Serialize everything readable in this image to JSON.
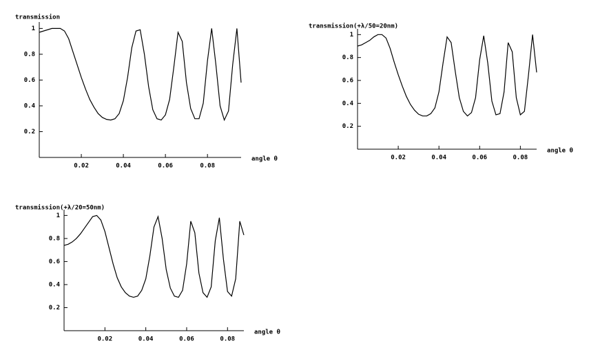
{
  "chart_data": [
    {
      "type": "line",
      "ylabel": "transmission",
      "xlabel": "angle θ",
      "xlim": [
        0,
        0.096
      ],
      "ylim": [
        0,
        1.05
      ],
      "xticks": [
        0.02,
        0.04,
        0.06,
        0.08
      ],
      "yticks": [
        0.2,
        0.4,
        0.6,
        0.8,
        1
      ],
      "color": "#000000",
      "x": [
        0,
        0.002,
        0.004,
        0.006,
        0.008,
        0.01,
        0.012,
        0.014,
        0.016,
        0.018,
        0.02,
        0.022,
        0.024,
        0.026,
        0.028,
        0.03,
        0.032,
        0.034,
        0.036,
        0.038,
        0.04,
        0.042,
        0.044,
        0.046,
        0.048,
        0.05,
        0.052,
        0.054,
        0.056,
        0.058,
        0.06,
        0.062,
        0.064,
        0.066,
        0.068,
        0.07,
        0.072,
        0.074,
        0.076,
        0.078,
        0.08,
        0.082,
        0.084,
        0.086,
        0.088,
        0.09,
        0.092,
        0.094,
        0.096
      ],
      "values": [
        0.97,
        0.98,
        0.99,
        1.0,
        1.0,
        1.0,
        0.98,
        0.92,
        0.82,
        0.72,
        0.62,
        0.53,
        0.45,
        0.39,
        0.34,
        0.31,
        0.295,
        0.29,
        0.3,
        0.34,
        0.44,
        0.62,
        0.85,
        0.98,
        0.99,
        0.8,
        0.55,
        0.37,
        0.3,
        0.29,
        0.33,
        0.45,
        0.7,
        0.97,
        0.9,
        0.58,
        0.38,
        0.3,
        0.3,
        0.42,
        0.75,
        1.0,
        0.72,
        0.4,
        0.29,
        0.36,
        0.72,
        1.0,
        0.58
      ]
    },
    {
      "type": "line",
      "ylabel": "transmission(+λ/50=20nm)",
      "xlabel": "angle θ",
      "xlim": [
        0,
        0.088
      ],
      "ylim": [
        0,
        1.05
      ],
      "xticks": [
        0.02,
        0.04,
        0.06,
        0.08
      ],
      "yticks": [
        0.2,
        0.4,
        0.6,
        0.8,
        1
      ],
      "color": "#000000",
      "x": [
        0,
        0.002,
        0.004,
        0.006,
        0.008,
        0.01,
        0.012,
        0.014,
        0.016,
        0.018,
        0.02,
        0.022,
        0.024,
        0.026,
        0.028,
        0.03,
        0.032,
        0.034,
        0.036,
        0.038,
        0.04,
        0.042,
        0.044,
        0.046,
        0.048,
        0.05,
        0.052,
        0.054,
        0.056,
        0.058,
        0.06,
        0.062,
        0.064,
        0.066,
        0.068,
        0.07,
        0.072,
        0.074,
        0.076,
        0.078,
        0.08,
        0.082,
        0.084,
        0.086,
        0.088
      ],
      "values": [
        0.9,
        0.91,
        0.93,
        0.95,
        0.98,
        1.0,
        1.0,
        0.97,
        0.88,
        0.76,
        0.65,
        0.55,
        0.46,
        0.39,
        0.34,
        0.305,
        0.29,
        0.29,
        0.31,
        0.36,
        0.5,
        0.75,
        0.98,
        0.93,
        0.68,
        0.45,
        0.33,
        0.29,
        0.32,
        0.45,
        0.78,
        0.99,
        0.75,
        0.42,
        0.3,
        0.31,
        0.5,
        0.93,
        0.85,
        0.45,
        0.3,
        0.33,
        0.65,
        1.0,
        0.67
      ]
    },
    {
      "type": "line",
      "ylabel": "transmission(+λ/20=50nm)",
      "xlabel": "angle θ",
      "xlim": [
        0,
        0.088
      ],
      "ylim": [
        0,
        1.05
      ],
      "xticks": [
        0.02,
        0.04,
        0.06,
        0.08
      ],
      "yticks": [
        0.2,
        0.4,
        0.6,
        0.8,
        1
      ],
      "color": "#000000",
      "x": [
        0,
        0.002,
        0.004,
        0.006,
        0.008,
        0.01,
        0.012,
        0.014,
        0.016,
        0.018,
        0.02,
        0.022,
        0.024,
        0.026,
        0.028,
        0.03,
        0.032,
        0.034,
        0.036,
        0.038,
        0.04,
        0.042,
        0.044,
        0.046,
        0.048,
        0.05,
        0.052,
        0.054,
        0.056,
        0.058,
        0.06,
        0.062,
        0.064,
        0.066,
        0.068,
        0.07,
        0.072,
        0.074,
        0.076,
        0.078,
        0.08,
        0.082,
        0.084,
        0.086,
        0.088
      ],
      "values": [
        0.74,
        0.75,
        0.77,
        0.8,
        0.84,
        0.89,
        0.94,
        0.99,
        1.0,
        0.96,
        0.86,
        0.72,
        0.58,
        0.46,
        0.38,
        0.33,
        0.3,
        0.29,
        0.3,
        0.35,
        0.45,
        0.65,
        0.9,
        0.99,
        0.8,
        0.53,
        0.37,
        0.3,
        0.29,
        0.35,
        0.58,
        0.95,
        0.85,
        0.5,
        0.33,
        0.29,
        0.38,
        0.78,
        0.98,
        0.62,
        0.34,
        0.3,
        0.45,
        0.95,
        0.83
      ]
    }
  ]
}
